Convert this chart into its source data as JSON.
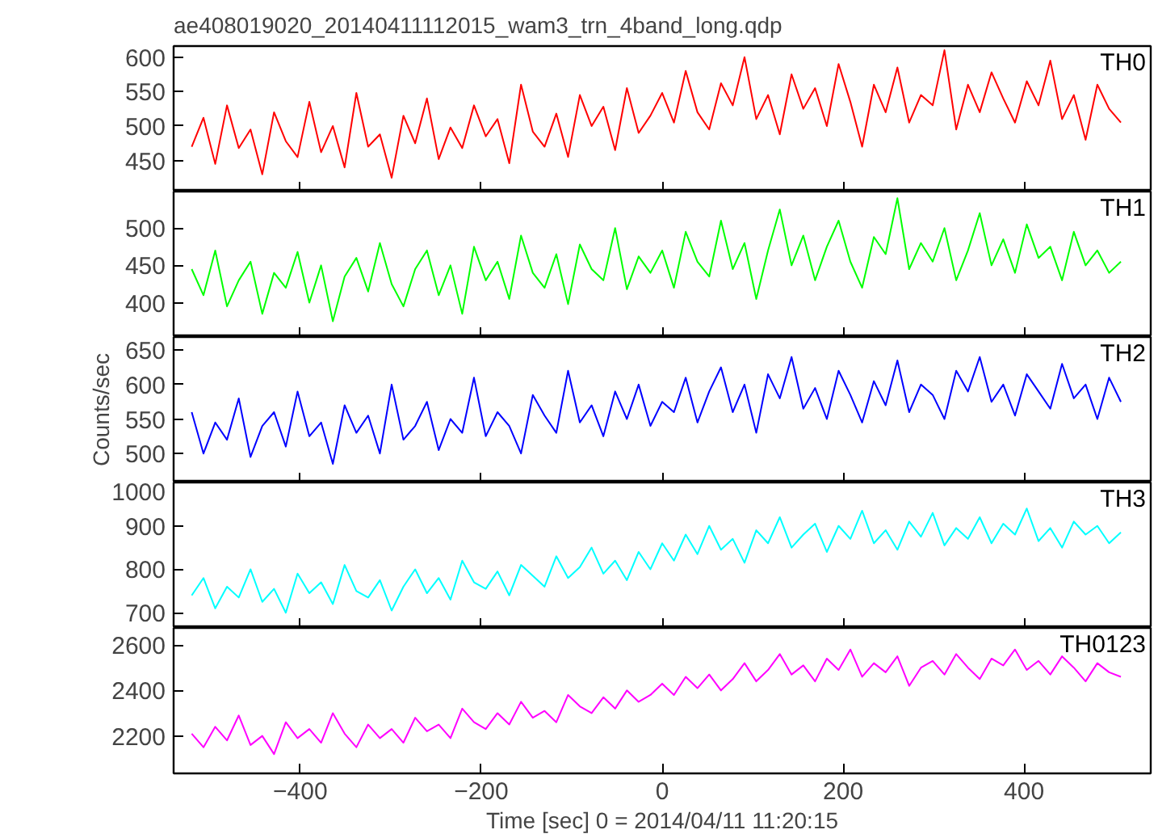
{
  "chart_data": [
    {
      "type": "line",
      "title": "ae408019020_20140411112015_wam3_trn_4band_long.qdp",
      "tick_labels": "y",
      "xlim": [
        -540,
        540
      ],
      "xticks": [
        -400,
        -200,
        0,
        200,
        400
      ],
      "ylim": [
        405,
        616
      ],
      "yticks": [
        450,
        500,
        550,
        600
      ],
      "x": [
        -520,
        -507,
        -494,
        -481,
        -468,
        -455,
        -442,
        -429,
        -416,
        -403,
        -390,
        -377,
        -364,
        -351,
        -338,
        -325,
        -312,
        -299,
        -286,
        -273,
        -260,
        -247,
        -234,
        -221,
        -208,
        -195,
        -182,
        -169,
        -156,
        -143,
        -130,
        -117,
        -104,
        -91,
        -78,
        -65,
        -52,
        -39,
        -26,
        -13,
        0,
        13,
        26,
        39,
        52,
        65,
        78,
        91,
        104,
        117,
        130,
        143,
        156,
        169,
        182,
        195,
        208,
        221,
        234,
        247,
        260,
        273,
        286,
        299,
        312,
        325,
        338,
        351,
        364,
        377,
        390,
        403,
        416,
        429,
        442,
        455,
        468,
        481,
        494,
        507
      ],
      "series": [
        {
          "name": "TH0",
          "color": "#ff0000",
          "values": [
            470,
            512,
            445,
            530,
            468,
            495,
            430,
            520,
            478,
            455,
            535,
            462,
            500,
            440,
            548,
            470,
            488,
            425,
            515,
            475,
            540,
            452,
            498,
            468,
            530,
            485,
            510,
            446,
            560,
            492,
            470,
            518,
            455,
            545,
            500,
            528,
            465,
            555,
            490,
            515,
            548,
            505,
            580,
            520,
            495,
            562,
            530,
            600,
            510,
            545,
            488,
            575,
            525,
            555,
            500,
            590,
            535,
            470,
            560,
            520,
            585,
            505,
            545,
            530,
            610,
            495,
            560,
            520,
            578,
            540,
            505,
            565,
            530,
            595,
            510,
            545,
            480,
            560,
            525,
            505
          ]
        }
      ]
    },
    {
      "type": "line",
      "tick_labels": "y",
      "xlim": [
        -540,
        540
      ],
      "xticks": [
        -400,
        -200,
        0,
        200,
        400
      ],
      "ylim": [
        354,
        549
      ],
      "yticks": [
        400,
        450,
        500
      ],
      "x": [
        -520,
        -507,
        -494,
        -481,
        -468,
        -455,
        -442,
        -429,
        -416,
        -403,
        -390,
        -377,
        -364,
        -351,
        -338,
        -325,
        -312,
        -299,
        -286,
        -273,
        -260,
        -247,
        -234,
        -221,
        -208,
        -195,
        -182,
        -169,
        -156,
        -143,
        -130,
        -117,
        -104,
        -91,
        -78,
        -65,
        -52,
        -39,
        -26,
        -13,
        0,
        13,
        26,
        39,
        52,
        65,
        78,
        91,
        104,
        117,
        130,
        143,
        156,
        169,
        182,
        195,
        208,
        221,
        234,
        247,
        260,
        273,
        286,
        299,
        312,
        325,
        338,
        351,
        364,
        377,
        390,
        403,
        416,
        429,
        442,
        455,
        468,
        481,
        494,
        507
      ],
      "series": [
        {
          "name": "TH1",
          "color": "#00ff00",
          "values": [
            445,
            410,
            470,
            395,
            430,
            455,
            385,
            440,
            420,
            468,
            400,
            450,
            375,
            435,
            460,
            415,
            480,
            425,
            395,
            445,
            470,
            410,
            450,
            385,
            475,
            430,
            455,
            405,
            490,
            440,
            420,
            465,
            398,
            478,
            445,
            430,
            500,
            418,
            462,
            440,
            470,
            420,
            495,
            455,
            435,
            510,
            445,
            480,
            405,
            470,
            525,
            450,
            490,
            430,
            475,
            510,
            455,
            420,
            488,
            465,
            540,
            445,
            480,
            455,
            500,
            430,
            470,
            520,
            450,
            485,
            440,
            505,
            460,
            475,
            430,
            495,
            450,
            470,
            440,
            455
          ]
        }
      ]
    },
    {
      "type": "line",
      "ylabel": "Counts/sec",
      "tick_labels": "y",
      "xlim": [
        -540,
        540
      ],
      "xticks": [
        -400,
        -200,
        0,
        200,
        400
      ],
      "ylim": [
        458,
        669
      ],
      "yticks": [
        500,
        550,
        600,
        650
      ],
      "x": [
        -520,
        -507,
        -494,
        -481,
        -468,
        -455,
        -442,
        -429,
        -416,
        -403,
        -390,
        -377,
        -364,
        -351,
        -338,
        -325,
        -312,
        -299,
        -286,
        -273,
        -260,
        -247,
        -234,
        -221,
        -208,
        -195,
        -182,
        -169,
        -156,
        -143,
        -130,
        -117,
        -104,
        -91,
        -78,
        -65,
        -52,
        -39,
        -26,
        -13,
        0,
        13,
        26,
        39,
        52,
        65,
        78,
        91,
        104,
        117,
        130,
        143,
        156,
        169,
        182,
        195,
        208,
        221,
        234,
        247,
        260,
        273,
        286,
        299,
        312,
        325,
        338,
        351,
        364,
        377,
        390,
        403,
        416,
        429,
        442,
        455,
        468,
        481,
        494,
        507
      ],
      "series": [
        {
          "name": "TH2",
          "color": "#0000ff",
          "values": [
            560,
            500,
            545,
            520,
            580,
            495,
            540,
            560,
            510,
            590,
            525,
            545,
            485,
            570,
            530,
            555,
            500,
            600,
            520,
            540,
            575,
            505,
            550,
            530,
            610,
            525,
            560,
            540,
            500,
            585,
            555,
            530,
            620,
            545,
            570,
            525,
            590,
            550,
            600,
            540,
            575,
            560,
            610,
            545,
            590,
            625,
            560,
            600,
            530,
            615,
            580,
            640,
            565,
            595,
            550,
            620,
            585,
            545,
            605,
            570,
            635,
            560,
            600,
            585,
            550,
            620,
            590,
            640,
            575,
            600,
            555,
            615,
            590,
            565,
            630,
            580,
            600,
            550,
            610,
            575
          ]
        }
      ]
    },
    {
      "type": "line",
      "tick_labels": "y",
      "xlim": [
        -540,
        540
      ],
      "xticks": [
        -400,
        -200,
        0,
        200,
        400
      ],
      "ylim": [
        665,
        1000
      ],
      "yticks": [
        700,
        800,
        900,
        1000
      ],
      "x": [
        -520,
        -507,
        -494,
        -481,
        -468,
        -455,
        -442,
        -429,
        -416,
        -403,
        -390,
        -377,
        -364,
        -351,
        -338,
        -325,
        -312,
        -299,
        -286,
        -273,
        -260,
        -247,
        -234,
        -221,
        -208,
        -195,
        -182,
        -169,
        -156,
        -143,
        -130,
        -117,
        -104,
        -91,
        -78,
        -65,
        -52,
        -39,
        -26,
        -13,
        0,
        13,
        26,
        39,
        52,
        65,
        78,
        91,
        104,
        117,
        130,
        143,
        156,
        169,
        182,
        195,
        208,
        221,
        234,
        247,
        260,
        273,
        286,
        299,
        312,
        325,
        338,
        351,
        364,
        377,
        390,
        403,
        416,
        429,
        442,
        455,
        468,
        481,
        494,
        507
      ],
      "series": [
        {
          "name": "TH3",
          "color": "#00ffff",
          "values": [
            740,
            780,
            710,
            760,
            735,
            800,
            725,
            755,
            700,
            790,
            745,
            770,
            720,
            810,
            750,
            735,
            775,
            705,
            760,
            800,
            745,
            780,
            730,
            820,
            770,
            755,
            795,
            740,
            810,
            785,
            760,
            830,
            780,
            805,
            850,
            790,
            820,
            775,
            840,
            800,
            860,
            820,
            880,
            835,
            900,
            845,
            870,
            815,
            890,
            860,
            920,
            850,
            880,
            905,
            840,
            900,
            870,
            935,
            860,
            890,
            845,
            910,
            875,
            930,
            855,
            895,
            870,
            920,
            860,
            905,
            880,
            940,
            865,
            895,
            850,
            910,
            880,
            900,
            860,
            885
          ]
        }
      ]
    },
    {
      "type": "line",
      "xlabel": "Time [sec] 0 = 2014/04/11 11:20:15",
      "xlim": [
        -540,
        540
      ],
      "xticks": [
        -400,
        -200,
        0,
        200,
        400
      ],
      "ylim": [
        2035,
        2675
      ],
      "yticks": [
        2200,
        2400,
        2600
      ],
      "x": [
        -520,
        -507,
        -494,
        -481,
        -468,
        -455,
        -442,
        -429,
        -416,
        -403,
        -390,
        -377,
        -364,
        -351,
        -338,
        -325,
        -312,
        -299,
        -286,
        -273,
        -260,
        -247,
        -234,
        -221,
        -208,
        -195,
        -182,
        -169,
        -156,
        -143,
        -130,
        -117,
        -104,
        -91,
        -78,
        -65,
        -52,
        -39,
        -26,
        -13,
        0,
        13,
        26,
        39,
        52,
        65,
        78,
        91,
        104,
        117,
        130,
        143,
        156,
        169,
        182,
        195,
        208,
        221,
        234,
        247,
        260,
        273,
        286,
        299,
        312,
        325,
        338,
        351,
        364,
        377,
        390,
        403,
        416,
        429,
        442,
        455,
        468,
        481,
        494,
        507
      ],
      "series": [
        {
          "name": "TH0123",
          "color": "#ff00ff",
          "values": [
            2210,
            2150,
            2240,
            2180,
            2290,
            2160,
            2200,
            2120,
            2260,
            2190,
            2230,
            2170,
            2300,
            2210,
            2150,
            2250,
            2190,
            2230,
            2170,
            2280,
            2220,
            2250,
            2190,
            2320,
            2260,
            2230,
            2300,
            2250,
            2350,
            2280,
            2310,
            2260,
            2380,
            2330,
            2300,
            2370,
            2320,
            2400,
            2350,
            2380,
            2430,
            2380,
            2460,
            2410,
            2470,
            2400,
            2450,
            2520,
            2440,
            2490,
            2560,
            2470,
            2510,
            2440,
            2540,
            2490,
            2580,
            2460,
            2520,
            2480,
            2550,
            2420,
            2500,
            2530,
            2470,
            2560,
            2500,
            2450,
            2540,
            2510,
            2580,
            2490,
            2530,
            2470,
            2550,
            2500,
            2440,
            2520,
            2480,
            2460
          ]
        }
      ]
    }
  ]
}
